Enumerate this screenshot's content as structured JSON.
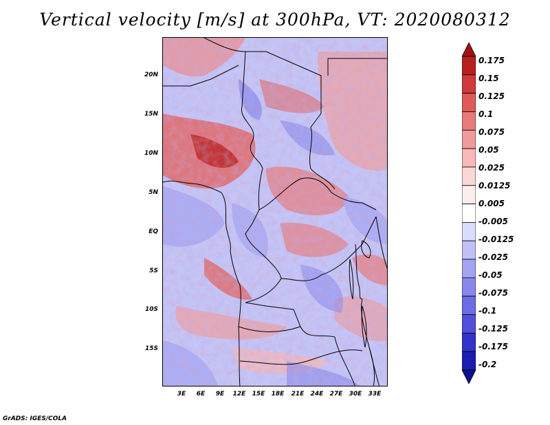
{
  "title": "Vertical velocity [m/s] at 300hPa, VT: 2020080312",
  "footer": "GrADS: IGES/COLA",
  "lat_axis": {
    "labels": [
      "20N",
      "15N",
      "10N",
      "5N",
      "EQ",
      "5S",
      "10S",
      "15S"
    ],
    "values": [
      20,
      15,
      10,
      5,
      0,
      -5,
      -10,
      -15
    ],
    "range": [
      -20,
      24.5
    ]
  },
  "lon_axis": {
    "labels": [
      "3E",
      "6E",
      "9E",
      "12E",
      "15E",
      "18E",
      "21E",
      "24E",
      "27E",
      "30E",
      "33E"
    ],
    "values": [
      3,
      6,
      9,
      12,
      15,
      18,
      21,
      24,
      27,
      30,
      33
    ],
    "range": [
      0,
      35
    ]
  },
  "colorbar": {
    "labels": [
      "0.175",
      "0.15",
      "0.125",
      "0.1",
      "0.075",
      "0.05",
      "0.025",
      "0.0125",
      "0.005",
      "-0.005",
      "-0.0125",
      "-0.025",
      "-0.05",
      "-0.075",
      "-0.1",
      "-0.125",
      "-0.175",
      "-0.2"
    ],
    "colors": [
      "#a01010",
      "#b82020",
      "#d03a3a",
      "#e05a5a",
      "#e87a7a",
      "#f09a9a",
      "#f6b8b8",
      "#fad6d6",
      "#fdeeee",
      "#ffffff",
      "#dcdcfc",
      "#c0c0f8",
      "#a4a4f2",
      "#8888ec",
      "#6c6ce4",
      "#5050da",
      "#3232c8",
      "#1c1cb0",
      "#10108c"
    ]
  }
}
